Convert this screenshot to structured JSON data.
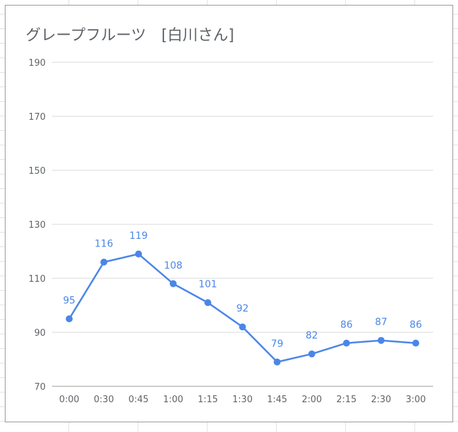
{
  "chart_data": {
    "type": "line",
    "title": "グレープフルーツ　[白川さん]",
    "categories": [
      "0:00",
      "0:30",
      "0:45",
      "1:00",
      "1:15",
      "1:30",
      "1:45",
      "2:00",
      "2:15",
      "2:30",
      "3:00"
    ],
    "series": [
      {
        "values": [
          95,
          116,
          119,
          108,
          101,
          92,
          79,
          82,
          86,
          87,
          86
        ],
        "color": "#4a86e8"
      }
    ],
    "yticks": [
      70,
      90,
      110,
      130,
      150,
      170,
      190
    ],
    "ylim": [
      70,
      190
    ],
    "xlabel": "",
    "ylabel": "",
    "grid": true,
    "data_labels": true
  }
}
